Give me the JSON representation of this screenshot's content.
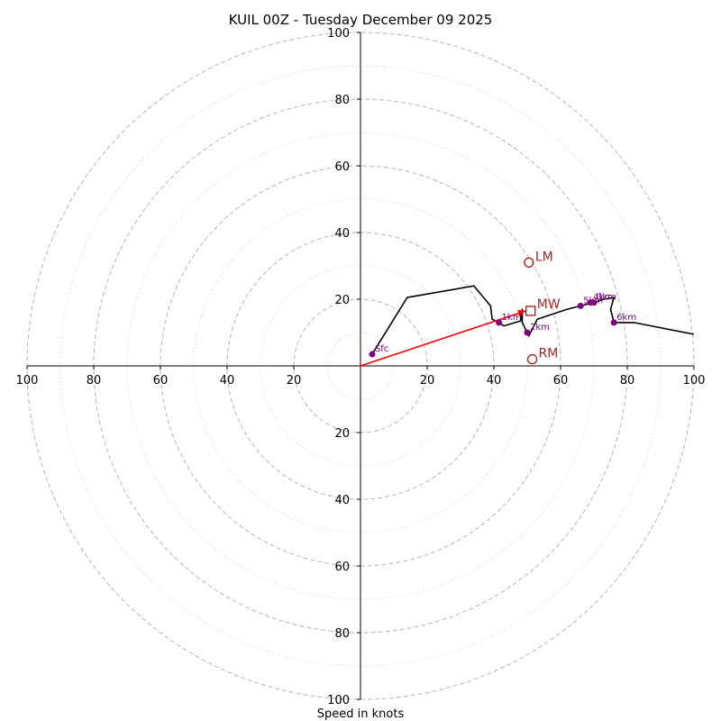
{
  "chart_data": {
    "type": "line",
    "title": "KUIL 00Z - Tuesday December 09 2025",
    "xlabel": "Speed in knots",
    "ylabel": "",
    "xlim": [
      -100,
      100
    ],
    "ylim": [
      -100,
      100
    ],
    "ring_values_major": [
      20,
      40,
      60,
      80,
      100
    ],
    "ring_values_minor": [
      10,
      30,
      50,
      70,
      90
    ],
    "x_tick_labels": [
      "100",
      "80",
      "60",
      "40",
      "20",
      "20",
      "40",
      "60",
      "80",
      "100"
    ],
    "x_tick_values": [
      -100,
      -80,
      -60,
      -40,
      -20,
      20,
      40,
      60,
      80,
      100
    ],
    "y_tick_labels": [
      "100",
      "80",
      "60",
      "40",
      "20",
      "20",
      "40",
      "60",
      "80",
      "100"
    ],
    "y_tick_values": [
      100,
      80,
      60,
      40,
      20,
      -20,
      -40,
      -60,
      -80,
      -100
    ],
    "hodograph": {
      "color": "#000000",
      "points": [
        [
          3.5,
          3.5
        ],
        [
          14,
          20.5
        ],
        [
          34,
          24
        ],
        [
          39,
          18
        ],
        [
          39.5,
          14
        ],
        [
          41.5,
          13
        ],
        [
          43,
          12
        ],
        [
          48,
          13.5
        ],
        [
          48.5,
          17
        ],
        [
          48.5,
          13
        ],
        [
          49.5,
          11
        ],
        [
          50,
          10
        ],
        [
          50.5,
          9
        ],
        [
          52,
          12
        ],
        [
          53,
          14
        ],
        [
          56,
          15
        ],
        [
          62,
          17
        ],
        [
          66,
          18
        ],
        [
          70,
          19
        ],
        [
          73,
          20
        ],
        [
          76,
          20.5
        ],
        [
          75,
          17
        ],
        [
          76,
          13
        ],
        [
          82,
          13
        ],
        [
          100,
          9.5
        ]
      ]
    },
    "height_markers": {
      "color": "#800080",
      "points": [
        {
          "label": "Sfc",
          "x": 3.5,
          "y": 3.5
        },
        {
          "label": "1km",
          "x": 41.5,
          "y": 13
        },
        {
          "label": "2km",
          "x": 50,
          "y": 10
        },
        {
          "label": "3km",
          "x": 70,
          "y": 19
        },
        {
          "label": "4km",
          "x": 69,
          "y": 19
        },
        {
          "label": "5km",
          "x": 66,
          "y": 18
        },
        {
          "label": "6km",
          "x": 76,
          "y": 13
        }
      ]
    },
    "storm_motion": {
      "color": "#b22222",
      "left_mover": {
        "label": "LM",
        "x": 50.5,
        "y": 31
      },
      "right_mover": {
        "label": "RM",
        "x": 51.5,
        "y": 2
      },
      "mean_wind": {
        "label": "MW",
        "x": 51,
        "y": 16.5
      },
      "shear_vector": {
        "x0": 0,
        "y0": 0,
        "x1": 49.5,
        "y1": 16.5,
        "color": "#ff0000"
      }
    },
    "grid": true
  }
}
